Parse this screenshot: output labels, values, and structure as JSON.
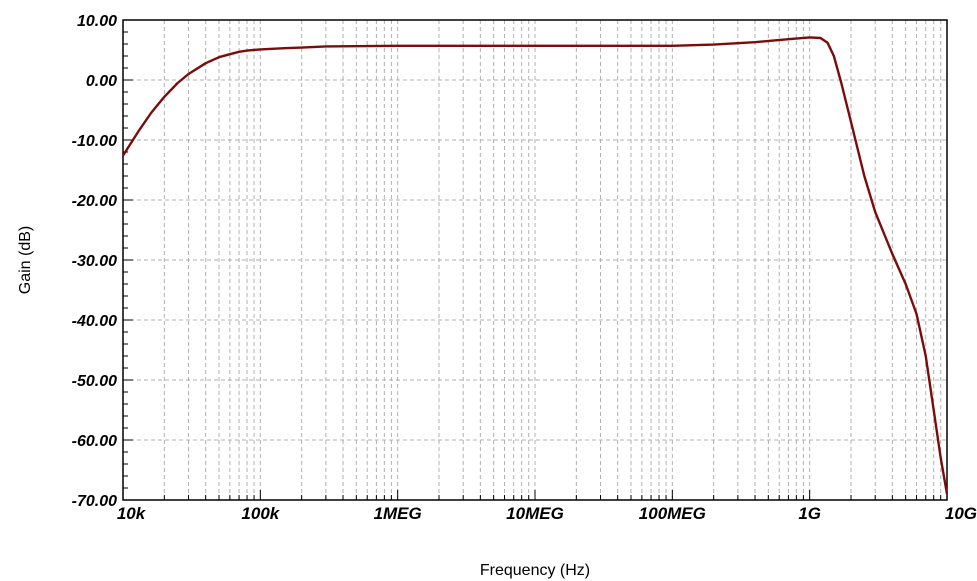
{
  "chart_data": {
    "type": "line",
    "title": "",
    "xlabel": "Frequency (Hz)",
    "ylabel": "Gain (dB)",
    "x_scale": "log",
    "xlim": [
      10000,
      10000000000
    ],
    "ylim": [
      -70,
      10
    ],
    "grid": true,
    "x_ticks": [
      {
        "value": 10000,
        "label": "10k"
      },
      {
        "value": 100000,
        "label": "100k"
      },
      {
        "value": 1000000,
        "label": "1MEG"
      },
      {
        "value": 10000000,
        "label": "10MEG"
      },
      {
        "value": 100000000,
        "label": "100MEG"
      },
      {
        "value": 1000000000,
        "label": "1G"
      },
      {
        "value": 10000000000,
        "label": "10G"
      }
    ],
    "y_ticks": [
      {
        "value": 10,
        "label": "10.00"
      },
      {
        "value": 0,
        "label": "0.00"
      },
      {
        "value": -10,
        "label": "-10.00"
      },
      {
        "value": -20,
        "label": "-20.00"
      },
      {
        "value": -30,
        "label": "-30.00"
      },
      {
        "value": -40,
        "label": "-40.00"
      },
      {
        "value": -50,
        "label": "-50.00"
      },
      {
        "value": -60,
        "label": "-60.00"
      },
      {
        "value": -70,
        "label": "-70.00"
      }
    ],
    "series": [
      {
        "color": "#7b0c0c",
        "points": [
          [
            10000,
            -12.6
          ],
          [
            13000,
            -8.5
          ],
          [
            16000,
            -5.5
          ],
          [
            20000,
            -2.8
          ],
          [
            25000,
            -0.5
          ],
          [
            30000,
            1.0
          ],
          [
            40000,
            2.8
          ],
          [
            50000,
            3.8
          ],
          [
            60000,
            4.3
          ],
          [
            70000,
            4.7
          ],
          [
            80000,
            4.9
          ],
          [
            100000,
            5.1
          ],
          [
            150000,
            5.3
          ],
          [
            200000,
            5.4
          ],
          [
            300000,
            5.6
          ],
          [
            1000000,
            5.7
          ],
          [
            10000000,
            5.7
          ],
          [
            100000000,
            5.7
          ],
          [
            200000000,
            5.9
          ],
          [
            400000000,
            6.3
          ],
          [
            700000000,
            6.8
          ],
          [
            1000000000,
            7.1
          ],
          [
            1200000000,
            7.0
          ],
          [
            1350000000,
            6.2
          ],
          [
            1500000000,
            4.0
          ],
          [
            1700000000,
            -0.5
          ],
          [
            2000000000,
            -7.0
          ],
          [
            2500000000,
            -16.0
          ],
          [
            3000000000,
            -22.0
          ],
          [
            4000000000,
            -29.0
          ],
          [
            5000000000,
            -34.0
          ],
          [
            6000000000,
            -39.0
          ],
          [
            7000000000,
            -46.0
          ],
          [
            8000000000,
            -55.0
          ],
          [
            9000000000,
            -63.0
          ],
          [
            10000000000,
            -69.0
          ]
        ]
      }
    ]
  }
}
